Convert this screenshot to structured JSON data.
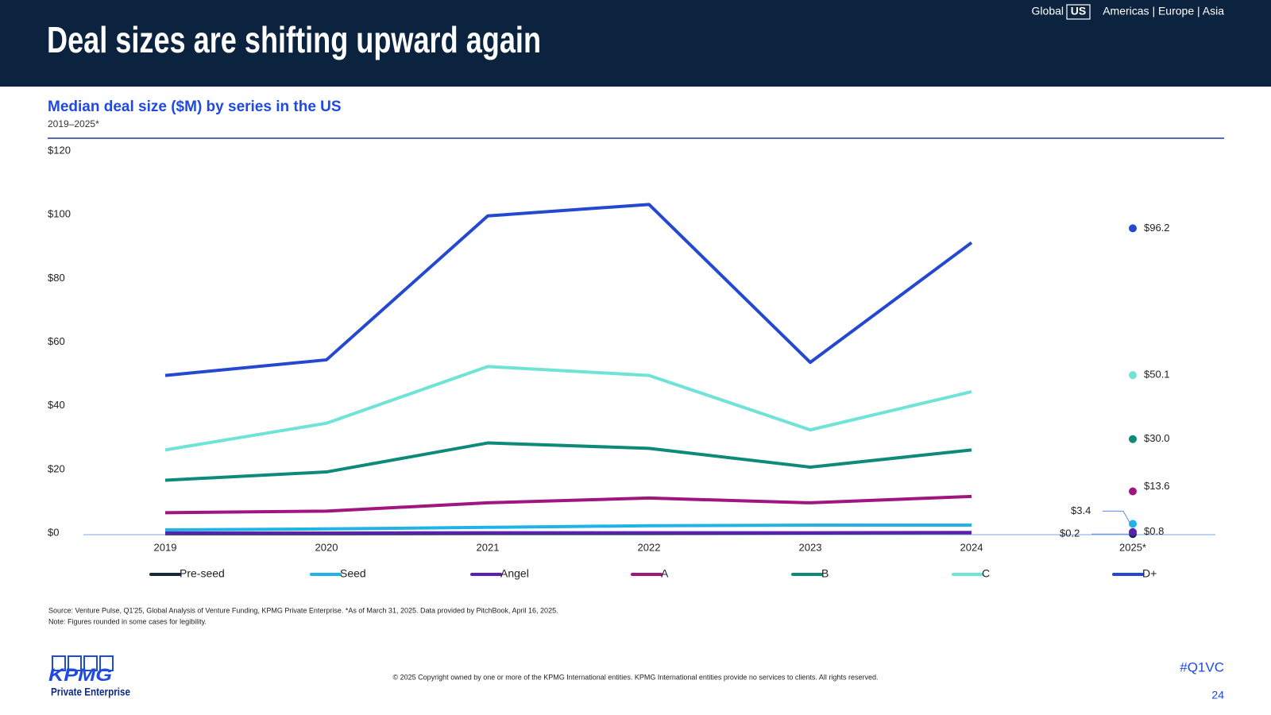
{
  "header": {
    "title": "Deal sizes are shifting upward again",
    "nav": {
      "global": "Global",
      "current": "US",
      "others": "Americas | Europe | Asia"
    }
  },
  "chart_data": {
    "type": "line",
    "title": "Median deal size ($M) by series in the US",
    "subtitle": "2019–2025*",
    "categories": [
      "2019",
      "2020",
      "2021",
      "2022",
      "2023",
      "2024",
      "2025*"
    ],
    "ylim": [
      0,
      120
    ],
    "yticks": [
      {
        "value": 0,
        "label": "$0"
      },
      {
        "value": 20,
        "label": "$20"
      },
      {
        "value": 40,
        "label": "$40"
      },
      {
        "value": 60,
        "label": "$60"
      },
      {
        "value": 80,
        "label": "$80"
      },
      {
        "value": 100,
        "label": "$100"
      },
      {
        "value": 120,
        "label": "$120"
      }
    ],
    "series": [
      {
        "name": "Pre-seed",
        "color": "#15283c",
        "values": [
          0.3,
          0.3,
          0.4,
          0.4,
          0.5,
          0.6,
          0.2
        ],
        "value_labels": [
          null,
          null,
          null,
          null,
          null,
          null,
          "$0.2"
        ]
      },
      {
        "name": "Seed",
        "color": "#1fb3e8",
        "values": [
          1.5,
          1.8,
          2.3,
          2.8,
          3.0,
          3.0,
          3.4
        ],
        "value_labels": [
          null,
          null,
          null,
          null,
          null,
          null,
          "$3.4"
        ]
      },
      {
        "name": "Angel",
        "color": "#5b20b2",
        "values": [
          0.5,
          0.5,
          0.6,
          0.6,
          0.6,
          0.7,
          0.8
        ],
        "value_labels": [
          null,
          null,
          null,
          null,
          null,
          null,
          "$0.8"
        ]
      },
      {
        "name": "A",
        "color": "#a1167e",
        "values": [
          6.9,
          7.4,
          10.0,
          11.5,
          10.0,
          12.0,
          13.6
        ],
        "value_labels": [
          null,
          null,
          null,
          null,
          null,
          null,
          "$13.6"
        ]
      },
      {
        "name": "B",
        "color": "#0e8a7b",
        "values": [
          17.1,
          19.7,
          28.8,
          27.1,
          21.2,
          26.6,
          30.0
        ],
        "value_labels": [
          null,
          null,
          null,
          null,
          null,
          null,
          "$30.0"
        ]
      },
      {
        "name": "C",
        "color": "#6ee3d6",
        "values": [
          26.6,
          35.0,
          52.8,
          50.0,
          32.9,
          44.9,
          50.1
        ],
        "value_labels": [
          null,
          null,
          null,
          null,
          null,
          null,
          "$50.1"
        ]
      },
      {
        "name": "D+",
        "color": "#2548d1",
        "values": [
          50.0,
          54.9,
          100.1,
          103.7,
          54.1,
          91.7,
          96.2
        ],
        "value_labels": [
          null,
          null,
          null,
          null,
          null,
          null,
          "$96.2"
        ]
      }
    ]
  },
  "footer": {
    "source": "Source: Venture Pulse, Q1'25, Global Analysis of Venture Funding, KPMG Private Enterprise. *As of March 31, 2025. Data provided by PitchBook, April 16, 2025.",
    "note": "Note: Figures rounded in some cases for legibility.",
    "copyright": "© 2025 Copyright owned by one or more of the KPMG International entities. KPMG International entities provide no services to clients. All rights reserved.",
    "hashtag": "#Q1VC",
    "page_number": "24",
    "logo": "KPMG",
    "logo_sub": "Private Enterprise"
  }
}
